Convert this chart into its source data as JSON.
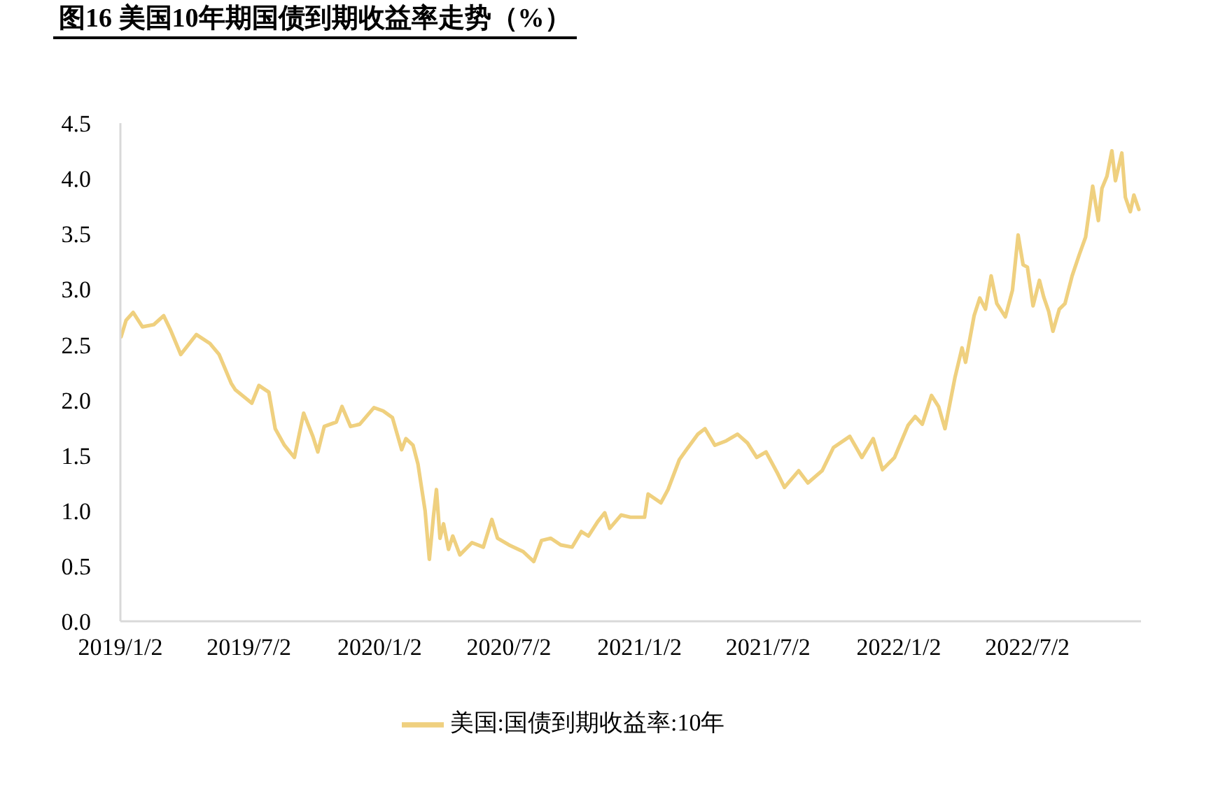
{
  "chart_data": {
    "type": "line",
    "title": "图16 美国10年期国债到期收益率走势（%）",
    "x": [
      "2019-01-03",
      "2019-01-10",
      "2019-01-20",
      "2019-02-02",
      "2019-02-18",
      "2019-03-04",
      "2019-03-13",
      "2019-03-28",
      "2019-04-19",
      "2019-05-08",
      "2019-05-21",
      "2019-06-07",
      "2019-06-13",
      "2019-07-06",
      "2019-07-16",
      "2019-07-30",
      "2019-08-08",
      "2019-08-21",
      "2019-09-04",
      "2019-09-17",
      "2019-09-30",
      "2019-10-07",
      "2019-10-16",
      "2019-11-02",
      "2019-11-10",
      "2019-11-22",
      "2019-12-05",
      "2019-12-25",
      "2020-01-07",
      "2020-01-20",
      "2020-02-02",
      "2020-02-08",
      "2020-02-18",
      "2020-02-25",
      "2020-03-06",
      "2020-03-12",
      "2020-03-18",
      "2020-03-22",
      "2020-03-27",
      "2020-04-01",
      "2020-04-08",
      "2020-04-14",
      "2020-04-24",
      "2020-05-11",
      "2020-05-27",
      "2020-06-08",
      "2020-06-16",
      "2020-07-02",
      "2020-07-22",
      "2020-08-06",
      "2020-08-17",
      "2020-08-30",
      "2020-09-13",
      "2020-09-29",
      "2020-10-12",
      "2020-10-22",
      "2020-11-04",
      "2020-11-14",
      "2020-11-21",
      "2020-12-07",
      "2020-12-20",
      "2021-01-09",
      "2021-01-14",
      "2021-02-01",
      "2021-02-11",
      "2021-02-27",
      "2021-03-09",
      "2021-03-25",
      "2021-04-04",
      "2021-04-18",
      "2021-05-04",
      "2021-05-20",
      "2021-06-03",
      "2021-06-16",
      "2021-06-29",
      "2021-07-15",
      "2021-07-25",
      "2021-08-14",
      "2021-08-27",
      "2021-09-16",
      "2021-10-02",
      "2021-10-25",
      "2021-11-11",
      "2021-11-27",
      "2021-12-10",
      "2021-12-27",
      "2022-01-15",
      "2022-01-25",
      "2022-02-04",
      "2022-02-17",
      "2022-02-27",
      "2022-03-08",
      "2022-03-22",
      "2022-04-01",
      "2022-04-06",
      "2022-04-18",
      "2022-04-26",
      "2022-05-04",
      "2022-05-12",
      "2022-05-20",
      "2022-06-01",
      "2022-06-11",
      "2022-06-19",
      "2022-06-26",
      "2022-07-02",
      "2022-07-10",
      "2022-07-19",
      "2022-07-25",
      "2022-08-01",
      "2022-08-07",
      "2022-08-16",
      "2022-08-24",
      "2022-09-03",
      "2022-09-13",
      "2022-09-22",
      "2022-10-02",
      "2022-10-10",
      "2022-10-15",
      "2022-10-22",
      "2022-10-29",
      "2022-11-03",
      "2022-11-12",
      "2022-11-17",
      "2022-11-24",
      "2022-11-29",
      "2022-12-06"
    ],
    "series": [
      {
        "name": "美国:国债到期收益率:10年",
        "color": "#efd07f",
        "values": [
          2.57,
          2.72,
          2.79,
          2.66,
          2.68,
          2.76,
          2.64,
          2.41,
          2.59,
          2.51,
          2.41,
          2.15,
          2.09,
          1.97,
          2.13,
          2.07,
          1.74,
          1.59,
          1.48,
          1.88,
          1.67,
          1.53,
          1.76,
          1.8,
          1.94,
          1.76,
          1.78,
          1.93,
          1.9,
          1.84,
          1.55,
          1.65,
          1.59,
          1.42,
          1.0,
          0.56,
          0.96,
          1.19,
          0.75,
          0.88,
          0.65,
          0.77,
          0.6,
          0.71,
          0.67,
          0.92,
          0.75,
          0.69,
          0.63,
          0.54,
          0.73,
          0.75,
          0.69,
          0.67,
          0.81,
          0.77,
          0.9,
          0.98,
          0.84,
          0.96,
          0.94,
          0.94,
          1.15,
          1.07,
          1.19,
          1.46,
          1.55,
          1.69,
          1.74,
          1.59,
          1.63,
          1.69,
          1.61,
          1.48,
          1.53,
          1.34,
          1.21,
          1.36,
          1.25,
          1.36,
          1.57,
          1.67,
          1.48,
          1.65,
          1.37,
          1.48,
          1.77,
          1.85,
          1.78,
          2.04,
          1.94,
          1.74,
          2.2,
          2.47,
          2.34,
          2.76,
          2.92,
          2.82,
          3.12,
          2.87,
          2.75,
          2.99,
          3.49,
          3.22,
          3.2,
          2.85,
          3.08,
          2.93,
          2.8,
          2.62,
          2.82,
          2.87,
          3.12,
          3.31,
          3.47,
          3.93,
          3.62,
          3.91,
          4.02,
          4.25,
          3.98,
          4.23,
          3.83,
          3.7,
          3.85,
          3.72
        ]
      }
    ],
    "xlim": [
      "2019-01-02",
      "2022-12-09"
    ],
    "xticks": [
      {
        "value": "2019-01-02",
        "label": "2019/1/2"
      },
      {
        "value": "2019-07-02",
        "label": "2019/7/2"
      },
      {
        "value": "2020-01-02",
        "label": "2020/1/2"
      },
      {
        "value": "2020-07-02",
        "label": "2020/7/2"
      },
      {
        "value": "2021-01-02",
        "label": "2021/1/2"
      },
      {
        "value": "2021-07-02",
        "label": "2021/7/2"
      },
      {
        "value": "2022-01-02",
        "label": "2022/1/2"
      },
      {
        "value": "2022-07-02",
        "label": "2022/7/2"
      }
    ],
    "ylim": [
      0,
      4.5
    ],
    "yticks": [
      {
        "value": 0,
        "label": "0.0"
      },
      0.5,
      {
        "value": 1,
        "label": "1.0"
      },
      1.5,
      {
        "value": 2,
        "label": "2.0"
      },
      2.5,
      {
        "value": 3,
        "label": "3.0"
      },
      3.5,
      {
        "value": 4,
        "label": "4.0"
      },
      4.5
    ],
    "grid": false,
    "legend": "bottom",
    "marker": "none",
    "line_style": "solid"
  }
}
